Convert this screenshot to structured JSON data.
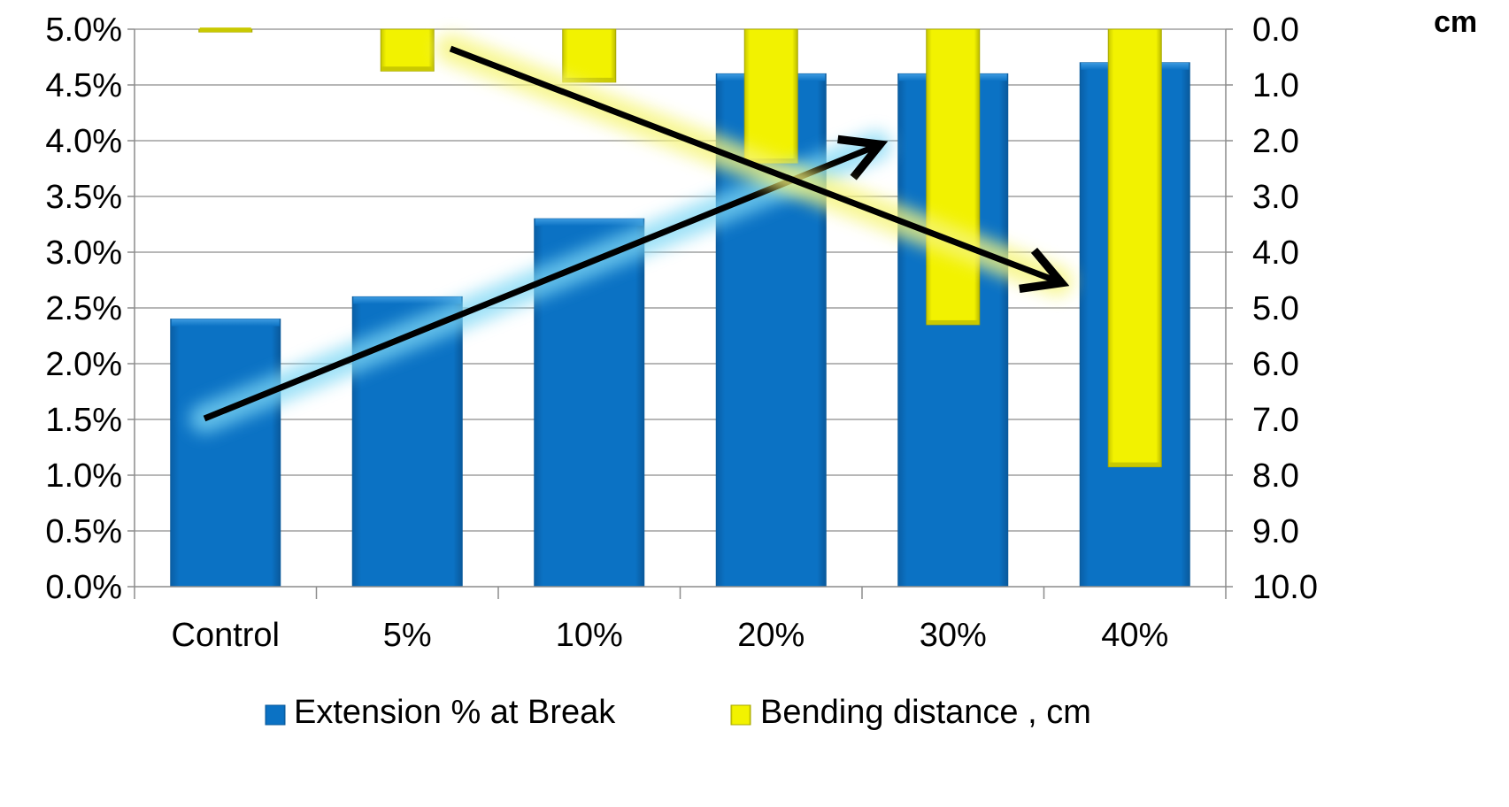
{
  "chart_data": {
    "type": "bar",
    "categories": [
      "Control",
      "5%",
      "10%",
      "20%",
      "30%",
      "40%"
    ],
    "series": [
      {
        "name": "Extension % at Break",
        "axis": "left",
        "values": [
          2.4,
          2.6,
          3.3,
          4.6,
          4.6,
          4.7
        ],
        "color": "#0B72C4"
      },
      {
        "name": "Bending distance , cm",
        "axis": "right",
        "values": [
          0.05,
          0.75,
          0.95,
          2.4,
          5.3,
          7.85
        ],
        "color": "#F2F200"
      }
    ],
    "left_axis": {
      "ticks": [
        "0.0%",
        "0.5%",
        "1.0%",
        "1.5%",
        "2.0%",
        "2.5%",
        "3.0%",
        "3.5%",
        "4.0%",
        "4.5%",
        "5.0%"
      ],
      "ylim": [
        0,
        5
      ],
      "format": "percent"
    },
    "right_axis": {
      "ticks": [
        "0.0",
        "1.0",
        "2.0",
        "3.0",
        "4.0",
        "5.0",
        "6.0",
        "7.0",
        "8.0",
        "9.0",
        "10.0"
      ],
      "ylim": [
        0,
        10
      ],
      "reversed": true,
      "unit_label": "cm"
    },
    "grid": true,
    "legend": "bottom",
    "annotations": [
      {
        "type": "trend-arrow",
        "series": "Extension % at Break",
        "direction": "up",
        "glow": "#7FD8F5"
      },
      {
        "type": "trend-arrow",
        "series": "Bending distance , cm",
        "direction": "down",
        "glow": "#F6F57A"
      }
    ]
  }
}
